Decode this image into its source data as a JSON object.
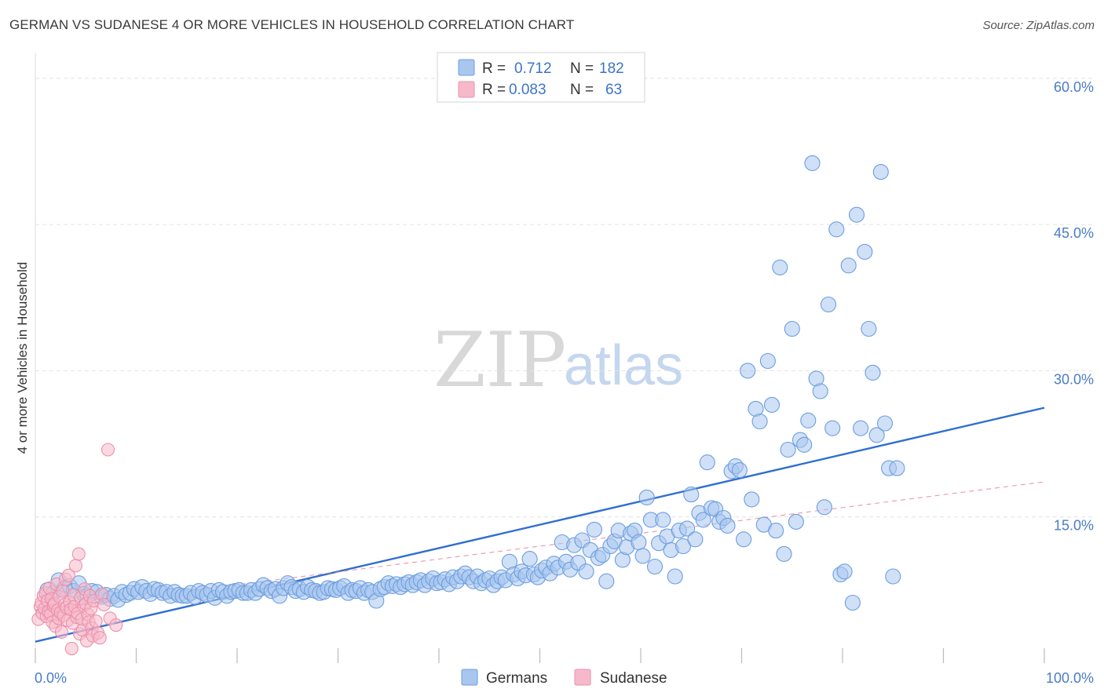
{
  "header": {
    "title": "GERMAN VS SUDANESE 4 OR MORE VEHICLES IN HOUSEHOLD CORRELATION CHART",
    "source": "Source: ZipAtlas.com"
  },
  "watermark": {
    "zip": "ZIP",
    "atlas": "atlas"
  },
  "colors": {
    "germans_fill": "#a9c6ee",
    "germans_stroke": "#6c9ee0",
    "germans_line": "#2f6fd1",
    "sudanese_fill": "#f6b9cb",
    "sudanese_stroke": "#ec8fab",
    "sudanese_line": "#e57a9a",
    "tick_label": "#4a7cc8",
    "grid": "#e2e2e2"
  },
  "legend": {
    "rows": [
      {
        "r_label": "R =",
        "r_value": "0.712",
        "n_label": "N =",
        "n_value": "182"
      },
      {
        "r_label": "R =",
        "r_value": "0.083",
        "n_label": "N =",
        "n_value": "63"
      }
    ]
  },
  "bottom_legend": {
    "germans": "Germans",
    "sudanese": "Sudanese"
  },
  "chart_data": {
    "type": "scatter",
    "title": "GERMAN VS SUDANESE 4 OR MORE VEHICLES IN HOUSEHOLD CORRELATION CHART",
    "xlabel": "",
    "ylabel": "4 or more Vehicles in Household",
    "xlim": [
      0,
      100
    ],
    "ylim": [
      0,
      62
    ],
    "x_tick_labels": {
      "min": "0.0%",
      "max": "100.0%"
    },
    "y_ticks": [
      {
        "value": 15,
        "label": "15.0%"
      },
      {
        "value": 30,
        "label": "30.0%"
      },
      {
        "value": 45,
        "label": "45.0%"
      },
      {
        "value": 60,
        "label": "60.0%"
      }
    ],
    "grid": true,
    "series": [
      {
        "name": "Germans",
        "r": 0.712,
        "n": 182,
        "trend": {
          "x": [
            0,
            100
          ],
          "y": [
            2.2,
            26.2
          ],
          "style": "solid"
        },
        "points": [
          [
            1.2,
            7.5
          ],
          [
            1.8,
            7.2
          ],
          [
            2.3,
            8.5
          ],
          [
            2.9,
            7.7
          ],
          [
            3.4,
            7.9
          ],
          [
            3.8,
            7.4
          ],
          [
            4.3,
            8.2
          ],
          [
            4.8,
            7.1
          ],
          [
            5.2,
            6.9
          ],
          [
            5.6,
            7.4
          ],
          [
            6.1,
            7.3
          ],
          [
            6.6,
            6.8
          ],
          [
            7.0,
            7.0
          ],
          [
            7.4,
            6.6
          ],
          [
            7.8,
            6.9
          ],
          [
            8.2,
            6.5
          ],
          [
            8.6,
            7.3
          ],
          [
            9.0,
            7.0
          ],
          [
            9.4,
            7.2
          ],
          [
            9.8,
            7.6
          ],
          [
            10.2,
            7.3
          ],
          [
            10.6,
            7.8
          ],
          [
            11.0,
            7.4
          ],
          [
            11.4,
            7.1
          ],
          [
            11.8,
            7.6
          ],
          [
            12.2,
            7.5
          ],
          [
            12.6,
            7.2
          ],
          [
            13.0,
            7.3
          ],
          [
            13.4,
            6.9
          ],
          [
            13.8,
            7.3
          ],
          [
            14.2,
            7.0
          ],
          [
            14.6,
            6.9
          ],
          [
            15.0,
            6.9
          ],
          [
            15.4,
            7.2
          ],
          [
            15.8,
            6.8
          ],
          [
            16.2,
            7.4
          ],
          [
            16.6,
            7.2
          ],
          [
            17.0,
            7.0
          ],
          [
            17.4,
            7.4
          ],
          [
            17.8,
            6.7
          ],
          [
            18.2,
            7.5
          ],
          [
            18.6,
            7.3
          ],
          [
            19.0,
            6.9
          ],
          [
            19.4,
            7.3
          ],
          [
            19.8,
            7.4
          ],
          [
            20.2,
            7.5
          ],
          [
            20.6,
            7.2
          ],
          [
            21.0,
            7.2
          ],
          [
            21.4,
            7.5
          ],
          [
            21.8,
            7.2
          ],
          [
            22.2,
            7.6
          ],
          [
            22.6,
            8.0
          ],
          [
            23.0,
            7.7
          ],
          [
            23.4,
            7.4
          ],
          [
            23.8,
            7.6
          ],
          [
            24.2,
            6.9
          ],
          [
            24.6,
            7.7
          ],
          [
            25.0,
            8.2
          ],
          [
            25.4,
            7.8
          ],
          [
            25.8,
            7.4
          ],
          [
            26.2,
            7.6
          ],
          [
            26.6,
            7.3
          ],
          [
            27.0,
            7.8
          ],
          [
            27.4,
            7.5
          ],
          [
            27.8,
            7.4
          ],
          [
            28.2,
            7.2
          ],
          [
            28.6,
            7.3
          ],
          [
            29.0,
            7.7
          ],
          [
            29.4,
            7.6
          ],
          [
            29.8,
            7.5
          ],
          [
            30.2,
            7.7
          ],
          [
            30.6,
            7.9
          ],
          [
            31.0,
            7.2
          ],
          [
            31.4,
            7.5
          ],
          [
            31.8,
            7.4
          ],
          [
            32.2,
            7.7
          ],
          [
            32.6,
            7.2
          ],
          [
            33.0,
            7.5
          ],
          [
            33.4,
            7.3
          ],
          [
            33.8,
            6.4
          ],
          [
            34.2,
            7.6
          ],
          [
            34.6,
            7.8
          ],
          [
            35.0,
            8.2
          ],
          [
            35.4,
            7.9
          ],
          [
            35.8,
            8.1
          ],
          [
            36.2,
            7.8
          ],
          [
            36.6,
            8.1
          ],
          [
            37.0,
            8.3
          ],
          [
            37.4,
            8.0
          ],
          [
            37.8,
            8.3
          ],
          [
            38.2,
            8.5
          ],
          [
            38.6,
            8.0
          ],
          [
            39.0,
            8.4
          ],
          [
            39.4,
            8.7
          ],
          [
            39.8,
            8.2
          ],
          [
            40.2,
            8.3
          ],
          [
            40.6,
            8.6
          ],
          [
            41.0,
            8.1
          ],
          [
            41.4,
            8.8
          ],
          [
            41.8,
            8.4
          ],
          [
            42.2,
            8.9
          ],
          [
            42.6,
            9.2
          ],
          [
            43.0,
            8.8
          ],
          [
            43.4,
            8.4
          ],
          [
            43.8,
            8.9
          ],
          [
            44.2,
            8.2
          ],
          [
            44.6,
            8.5
          ],
          [
            45.0,
            8.7
          ],
          [
            45.4,
            8.0
          ],
          [
            45.8,
            8.4
          ],
          [
            46.2,
            8.8
          ],
          [
            46.6,
            8.5
          ],
          [
            47.0,
            10.4
          ],
          [
            47.4,
            9.1
          ],
          [
            47.8,
            8.7
          ],
          [
            48.2,
            9.4
          ],
          [
            48.6,
            9.0
          ],
          [
            49.0,
            10.7
          ],
          [
            49.4,
            9.1
          ],
          [
            49.8,
            8.8
          ],
          [
            50.2,
            9.5
          ],
          [
            50.6,
            9.8
          ],
          [
            51.0,
            9.2
          ],
          [
            51.4,
            10.2
          ],
          [
            51.8,
            9.8
          ],
          [
            52.2,
            12.4
          ],
          [
            52.6,
            10.4
          ],
          [
            53.0,
            9.6
          ],
          [
            53.4,
            12.1
          ],
          [
            53.8,
            10.3
          ],
          [
            54.2,
            12.6
          ],
          [
            54.6,
            9.4
          ],
          [
            55.0,
            11.6
          ],
          [
            55.4,
            13.7
          ],
          [
            55.8,
            10.8
          ],
          [
            56.2,
            11.1
          ],
          [
            56.6,
            8.4
          ],
          [
            57.0,
            12.0
          ],
          [
            57.4,
            12.5
          ],
          [
            57.8,
            13.6
          ],
          [
            58.2,
            10.6
          ],
          [
            58.6,
            11.9
          ],
          [
            59.0,
            13.3
          ],
          [
            59.4,
            13.6
          ],
          [
            59.8,
            12.4
          ],
          [
            60.2,
            11.0
          ],
          [
            60.6,
            17.0
          ],
          [
            61.0,
            14.7
          ],
          [
            61.4,
            9.9
          ],
          [
            61.8,
            12.3
          ],
          [
            62.2,
            14.7
          ],
          [
            62.6,
            13.0
          ],
          [
            63.0,
            11.6
          ],
          [
            63.4,
            8.9
          ],
          [
            63.8,
            13.6
          ],
          [
            64.2,
            12.0
          ],
          [
            64.6,
            13.8
          ],
          [
            65.0,
            17.3
          ],
          [
            65.4,
            12.7
          ],
          [
            65.8,
            15.4
          ],
          [
            66.2,
            14.7
          ],
          [
            66.6,
            20.6
          ],
          [
            67.0,
            15.9
          ],
          [
            67.4,
            15.8
          ],
          [
            67.8,
            14.5
          ],
          [
            68.2,
            14.9
          ],
          [
            68.6,
            14.1
          ],
          [
            69.0,
            19.7
          ],
          [
            69.4,
            20.2
          ],
          [
            69.8,
            19.8
          ],
          [
            70.2,
            12.7
          ],
          [
            70.6,
            30.0
          ],
          [
            71.0,
            16.8
          ],
          [
            71.4,
            26.1
          ],
          [
            71.8,
            24.8
          ],
          [
            72.2,
            14.2
          ],
          [
            72.6,
            31.0
          ],
          [
            73.0,
            26.5
          ],
          [
            73.4,
            13.6
          ],
          [
            73.8,
            40.6
          ],
          [
            74.2,
            11.2
          ],
          [
            74.6,
            21.9
          ],
          [
            75.0,
            34.3
          ],
          [
            75.4,
            14.5
          ],
          [
            75.8,
            22.9
          ],
          [
            76.2,
            22.4
          ],
          [
            76.6,
            24.9
          ],
          [
            77.0,
            51.3
          ],
          [
            77.4,
            29.2
          ],
          [
            77.8,
            27.9
          ],
          [
            78.2,
            16.0
          ],
          [
            78.6,
            36.8
          ],
          [
            79.0,
            24.1
          ],
          [
            79.4,
            44.5
          ],
          [
            79.8,
            9.1
          ],
          [
            80.2,
            9.4
          ],
          [
            80.6,
            40.8
          ],
          [
            81.0,
            6.2
          ],
          [
            81.4,
            46.0
          ],
          [
            81.8,
            24.1
          ],
          [
            82.2,
            42.2
          ],
          [
            82.6,
            34.3
          ],
          [
            83.0,
            29.8
          ],
          [
            83.4,
            23.4
          ],
          [
            83.8,
            50.4
          ],
          [
            84.2,
            24.6
          ],
          [
            84.6,
            20.0
          ],
          [
            85.0,
            8.9
          ],
          [
            85.4,
            20.0
          ]
        ]
      },
      {
        "name": "Sudanese",
        "r": 0.083,
        "n": 63,
        "trend": {
          "x": [
            0,
            100
          ],
          "y": [
            5.4,
            18.6
          ],
          "style": "dashed"
        },
        "points": [
          [
            0.3,
            4.5
          ],
          [
            0.5,
            5.8
          ],
          [
            0.6,
            6.2
          ],
          [
            0.7,
            5.1
          ],
          [
            0.8,
            6.9
          ],
          [
            0.9,
            5.6
          ],
          [
            1.0,
            7.2
          ],
          [
            1.1,
            4.8
          ],
          [
            1.2,
            6.4
          ],
          [
            1.3,
            5.3
          ],
          [
            1.4,
            7.7
          ],
          [
            1.5,
            5.0
          ],
          [
            1.6,
            6.6
          ],
          [
            1.7,
            4.2
          ],
          [
            1.8,
            5.9
          ],
          [
            1.9,
            6.1
          ],
          [
            2.0,
            3.8
          ],
          [
            2.1,
            8.1
          ],
          [
            2.2,
            5.4
          ],
          [
            2.3,
            4.6
          ],
          [
            2.4,
            6.8
          ],
          [
            2.5,
            5.2
          ],
          [
            2.6,
            3.2
          ],
          [
            2.7,
            7.4
          ],
          [
            2.8,
            4.9
          ],
          [
            2.9,
            6.0
          ],
          [
            3.0,
            8.6
          ],
          [
            3.1,
            5.7
          ],
          [
            3.2,
            4.4
          ],
          [
            3.3,
            9.0
          ],
          [
            3.4,
            6.3
          ],
          [
            3.5,
            5.5
          ],
          [
            3.6,
            1.5
          ],
          [
            3.7,
            4.1
          ],
          [
            3.8,
            7.0
          ],
          [
            3.9,
            5.8
          ],
          [
            4.0,
            10.0
          ],
          [
            4.1,
            4.7
          ],
          [
            4.2,
            5.1
          ],
          [
            4.3,
            11.2
          ],
          [
            4.4,
            3.0
          ],
          [
            4.5,
            6.7
          ],
          [
            4.6,
            4.5
          ],
          [
            4.7,
            3.4
          ],
          [
            4.8,
            5.9
          ],
          [
            4.9,
            7.6
          ],
          [
            5.0,
            6.1
          ],
          [
            5.1,
            2.3
          ],
          [
            5.2,
            5.0
          ],
          [
            5.3,
            4.2
          ],
          [
            5.4,
            6.9
          ],
          [
            5.5,
            5.6
          ],
          [
            5.6,
            3.6
          ],
          [
            5.7,
            2.8
          ],
          [
            5.8,
            6.4
          ],
          [
            6.0,
            4.3
          ],
          [
            6.2,
            3.1
          ],
          [
            6.4,
            2.6
          ],
          [
            6.6,
            7.1
          ],
          [
            6.8,
            6.0
          ],
          [
            7.2,
            21.9
          ],
          [
            7.4,
            4.6
          ],
          [
            8.0,
            3.9
          ]
        ]
      }
    ]
  }
}
